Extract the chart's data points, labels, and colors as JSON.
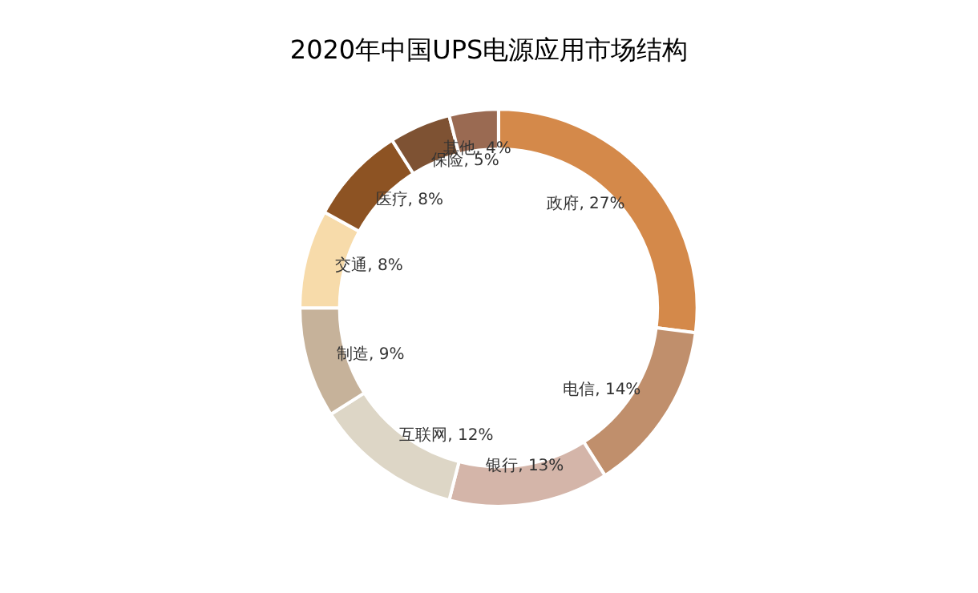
{
  "chart_data": {
    "type": "donut",
    "title": "2020年中国UPS电源应用市场结构",
    "categories": [
      "政府",
      "电信",
      "银行",
      "互联网",
      "制造",
      "交通",
      "医疗",
      "保险",
      "其他"
    ],
    "values": [
      27,
      14,
      13,
      12,
      9,
      8,
      8,
      5,
      4
    ],
    "colors": [
      "#d4894a",
      "#c08f6c",
      "#d4b5a9",
      "#ddd6c6",
      "#c6b29a",
      "#f7dbaa",
      "#8d5323",
      "#7e5233",
      "#9a6a52"
    ],
    "value_labels": [
      ", 27%",
      ", 14%",
      ", 13%",
      ", 12%",
      ", 9%",
      ", 8%",
      ", 8%",
      ", 5%",
      ", 4%"
    ],
    "legend": false
  }
}
